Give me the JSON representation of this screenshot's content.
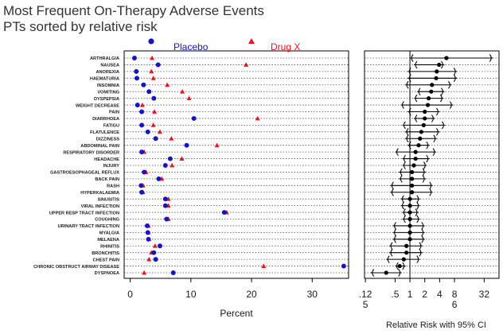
{
  "titles": {
    "line1": "Most Frequent On-Therapy Adverse Events",
    "line2": "PTs sorted by relative risk"
  },
  "colors": {
    "placebo": "#1414c8",
    "drug": "#e8141e",
    "axis": "#000000",
    "grid": "#555555",
    "label": "#1a1a1a"
  },
  "chart_data": [
    {
      "type": "scatter",
      "xlabel": "Percent",
      "xlim": [
        -1,
        36
      ],
      "xticks": [
        0,
        10,
        20,
        30
      ],
      "xtick_labels": [
        "0",
        "10",
        "20",
        "30"
      ],
      "grid": "dotted horizontal row lines",
      "legend": {
        "position": "top",
        "placebo_label": "Placebo",
        "drug_label": "Drug X"
      },
      "categories": [
        "ARTHRALGIA",
        "NAUSEA",
        "ANOREXIA",
        "HAEMATURIA",
        "INSOMNIA",
        "VOMITING",
        "DYSPEPSIA",
        "WEIGHT DECREASE",
        "PAIN",
        "DIARRHOEA",
        "FATIGU",
        "FLATULENCE",
        "DIZZINESS",
        "ABDOMINAL PAIN",
        "RESPIRATORY DISORDER",
        "HEADACHE",
        "INJURY",
        "GASTROESOPHAGEAL REFLUX",
        "BACK PAIN",
        "RASH",
        "HYPERKALAEMIA",
        "SINUSITIS",
        "VIRAL INFECTION",
        "UPPER RESP TRACT INFECTION",
        "COUGHING",
        "URINARY TRACT INFECTION",
        "MYALGIA",
        "MELAENA",
        "RHINITIS",
        "BRONCHITIS",
        "CHEST PAIN",
        "CHRONIC OBSTRUCT AIRWAY DISEASE",
        "DYSPNOEA"
      ],
      "series": [
        {
          "name": "Placebo",
          "marker": "circle",
          "values": [
            0.7,
            4.6,
            1.0,
            1.1,
            2.2,
            3.1,
            3.9,
            1.2,
            1.9,
            10.5,
            1.9,
            2.9,
            4.2,
            9.3,
            1.9,
            6.6,
            5.8,
            2.3,
            4.7,
            1.8,
            1.9,
            5.8,
            5.8,
            15.5,
            6.0,
            2.8,
            2.9,
            3.0,
            4.9,
            3.9,
            4.2,
            35.2,
            7.1
          ]
        },
        {
          "name": "Drug X",
          "marker": "triangle",
          "values": [
            3.6,
            19.1,
            3.5,
            3.8,
            6.1,
            8.6,
            9.7,
            2.0,
            4.0,
            21.0,
            3.8,
            4.9,
            6.8,
            14.3,
            2.3,
            8.5,
            6.9,
            2.6,
            5.2,
            2.1,
            2.1,
            6.3,
            6.3,
            15.9,
            6.3,
            3.0,
            3.0,
            3.1,
            4.1,
            3.5,
            3.1,
            22.0,
            2.3
          ]
        }
      ]
    },
    {
      "type": "scatter",
      "xlabel": "Relative Risk with 95% CI",
      "scale": "log2",
      "xlim": [
        0.12,
        64
      ],
      "xticks": [
        0.125,
        0.5,
        1,
        2,
        4,
        8,
        32
      ],
      "xtick_labels": [
        ".12",
        ".5",
        "1",
        "2",
        "4",
        "8",
        "32"
      ],
      "xtick_sublabels": [
        "5",
        "",
        "",
        "",
        "",
        "6",
        ""
      ],
      "reference_line": 1,
      "categories": [
        "ARTHRALGIA",
        "NAUSEA",
        "ANOREXIA",
        "HAEMATURIA",
        "INSOMNIA",
        "VOMITING",
        "DYSPEPSIA",
        "WEIGHT DECREASE",
        "PAIN",
        "DIARRHOEA",
        "FATIGU",
        "FLATULENCE",
        "DIZZINESS",
        "ABDOMINAL PAIN",
        "RESPIRATORY DISORDER",
        "HEADACHE",
        "INJURY",
        "GASTROESOPHAGEAL REFLUX",
        "BACK PAIN",
        "RASH",
        "HYPERKALAEMIA",
        "SINUSITIS",
        "VIRAL INFECTION",
        "UPPER RESP TRACT INFECTION",
        "COUGHING",
        "URINARY TRACT INFECTION",
        "MYALGIA",
        "MELAENA",
        "RHINITIS",
        "BRONCHITIS",
        "CHEST PAIN",
        "CHRONIC OBSTRUCT AIRWAY DISEASE",
        "DYSPNOEA"
      ],
      "estimate": [
        5.5,
        3.9,
        3.5,
        3.4,
        2.8,
        2.7,
        2.4,
        2.3,
        2.0,
        2.0,
        1.9,
        1.7,
        1.6,
        1.5,
        1.3,
        1.3,
        1.2,
        1.1,
        1.1,
        1.1,
        1.1,
        1.0,
        1.0,
        1.0,
        1.0,
        1.0,
        1.0,
        1.0,
        0.85,
        0.85,
        0.75,
        0.62,
        0.33
      ],
      "lower": [
        1.0,
        1.2,
        0.9,
        0.9,
        0.8,
        1.4,
        1.2,
        0.65,
        0.9,
        1.2,
        0.7,
        0.8,
        0.8,
        0.9,
        0.5,
        0.7,
        0.7,
        0.6,
        0.6,
        0.4,
        0.4,
        0.65,
        0.65,
        0.7,
        0.7,
        0.45,
        0.45,
        0.45,
        0.38,
        0.38,
        0.33,
        0.5,
        0.16
      ],
      "upper": [
        48,
        5.0,
        9.0,
        9.0,
        7.0,
        5.0,
        4.8,
        7.5,
        4.0,
        3.2,
        5.2,
        4.0,
        3.5,
        2.5,
        3.4,
        2.5,
        2.2,
        2.1,
        2.1,
        2.9,
        2.9,
        1.6,
        1.6,
        1.5,
        1.6,
        2.0,
        2.0,
        2.0,
        1.8,
        1.8,
        1.6,
        0.82,
        0.68
      ]
    }
  ]
}
